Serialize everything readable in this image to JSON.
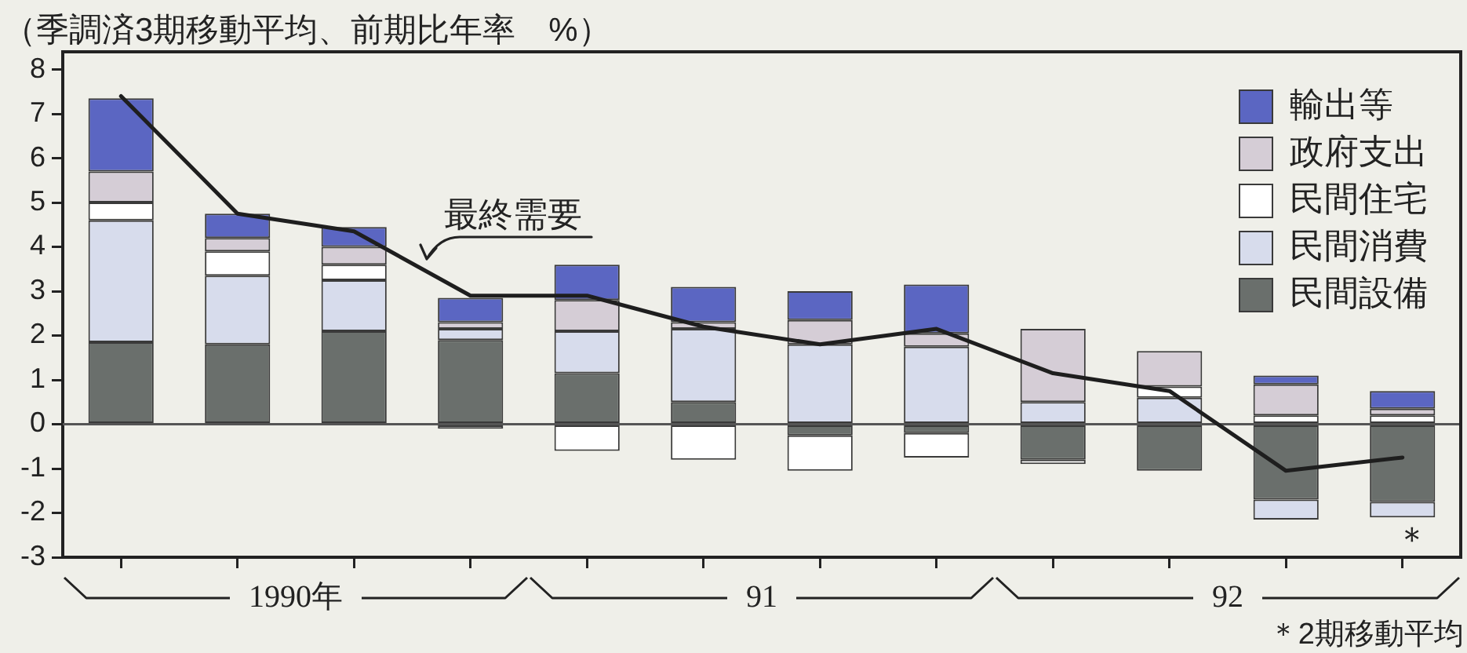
{
  "chart_data": {
    "type": "bar",
    "stacked": true,
    "ylabel": "（季調済3期移動平均、前期比年率　%）",
    "categories": [
      null,
      null,
      null,
      null,
      null,
      null,
      null,
      null,
      null,
      null,
      null,
      null
    ],
    "series": [
      {
        "name": "民間設備",
        "color": "#6a6f6c",
        "values": [
          1.85,
          1.8,
          2.1,
          1.9,
          1.15,
          0.5,
          -0.25,
          -0.2,
          -0.8,
          -1.05,
          -1.7,
          -1.75
        ]
      },
      {
        "name": "民間消費",
        "color": "#d7dcec",
        "values": [
          2.75,
          1.55,
          1.15,
          0.25,
          0.95,
          1.65,
          1.8,
          1.75,
          0.5,
          0.6,
          -0.45,
          -0.35
        ]
      },
      {
        "name": "民間住宅",
        "color": "#ffffff",
        "values": [
          0.4,
          0.55,
          0.35,
          -0.1,
          -0.6,
          -0.8,
          -0.8,
          -0.55,
          -0.1,
          0.25,
          0.2,
          0.2
        ]
      },
      {
        "name": "政府支出",
        "color": "#d5cdd6",
        "values": [
          0.7,
          0.3,
          0.4,
          0.15,
          0.7,
          0.15,
          0.55,
          0.3,
          1.65,
          0.8,
          0.7,
          0.15
        ]
      },
      {
        "name": "輸出等",
        "color": "#5b66c2",
        "values": [
          1.65,
          0.55,
          0.45,
          0.55,
          0.8,
          0.8,
          0.65,
          1.1,
          0,
          0,
          0.2,
          0.4
        ]
      },
      {
        "name": "最終需要",
        "type": "line",
        "color": "#1e1e1e",
        "values": [
          7.4,
          4.75,
          4.35,
          2.9,
          2.9,
          2.2,
          1.8,
          2.15,
          1.15,
          0.75,
          -1.05,
          -0.75
        ]
      }
    ],
    "ylim": [
      -3,
      8.4
    ],
    "yticks": [
      -3,
      -2,
      -1,
      0,
      1,
      2,
      3,
      4,
      5,
      6,
      7,
      8
    ],
    "legend": "top right",
    "marker": "none",
    "ref_lines": [
      {
        "axis": "y",
        "value": 0,
        "color": "#555555"
      }
    ],
    "annotations": [
      "1990年",
      "91",
      "92",
      "＊",
      "＊2期移動平均"
    ]
  }
}
